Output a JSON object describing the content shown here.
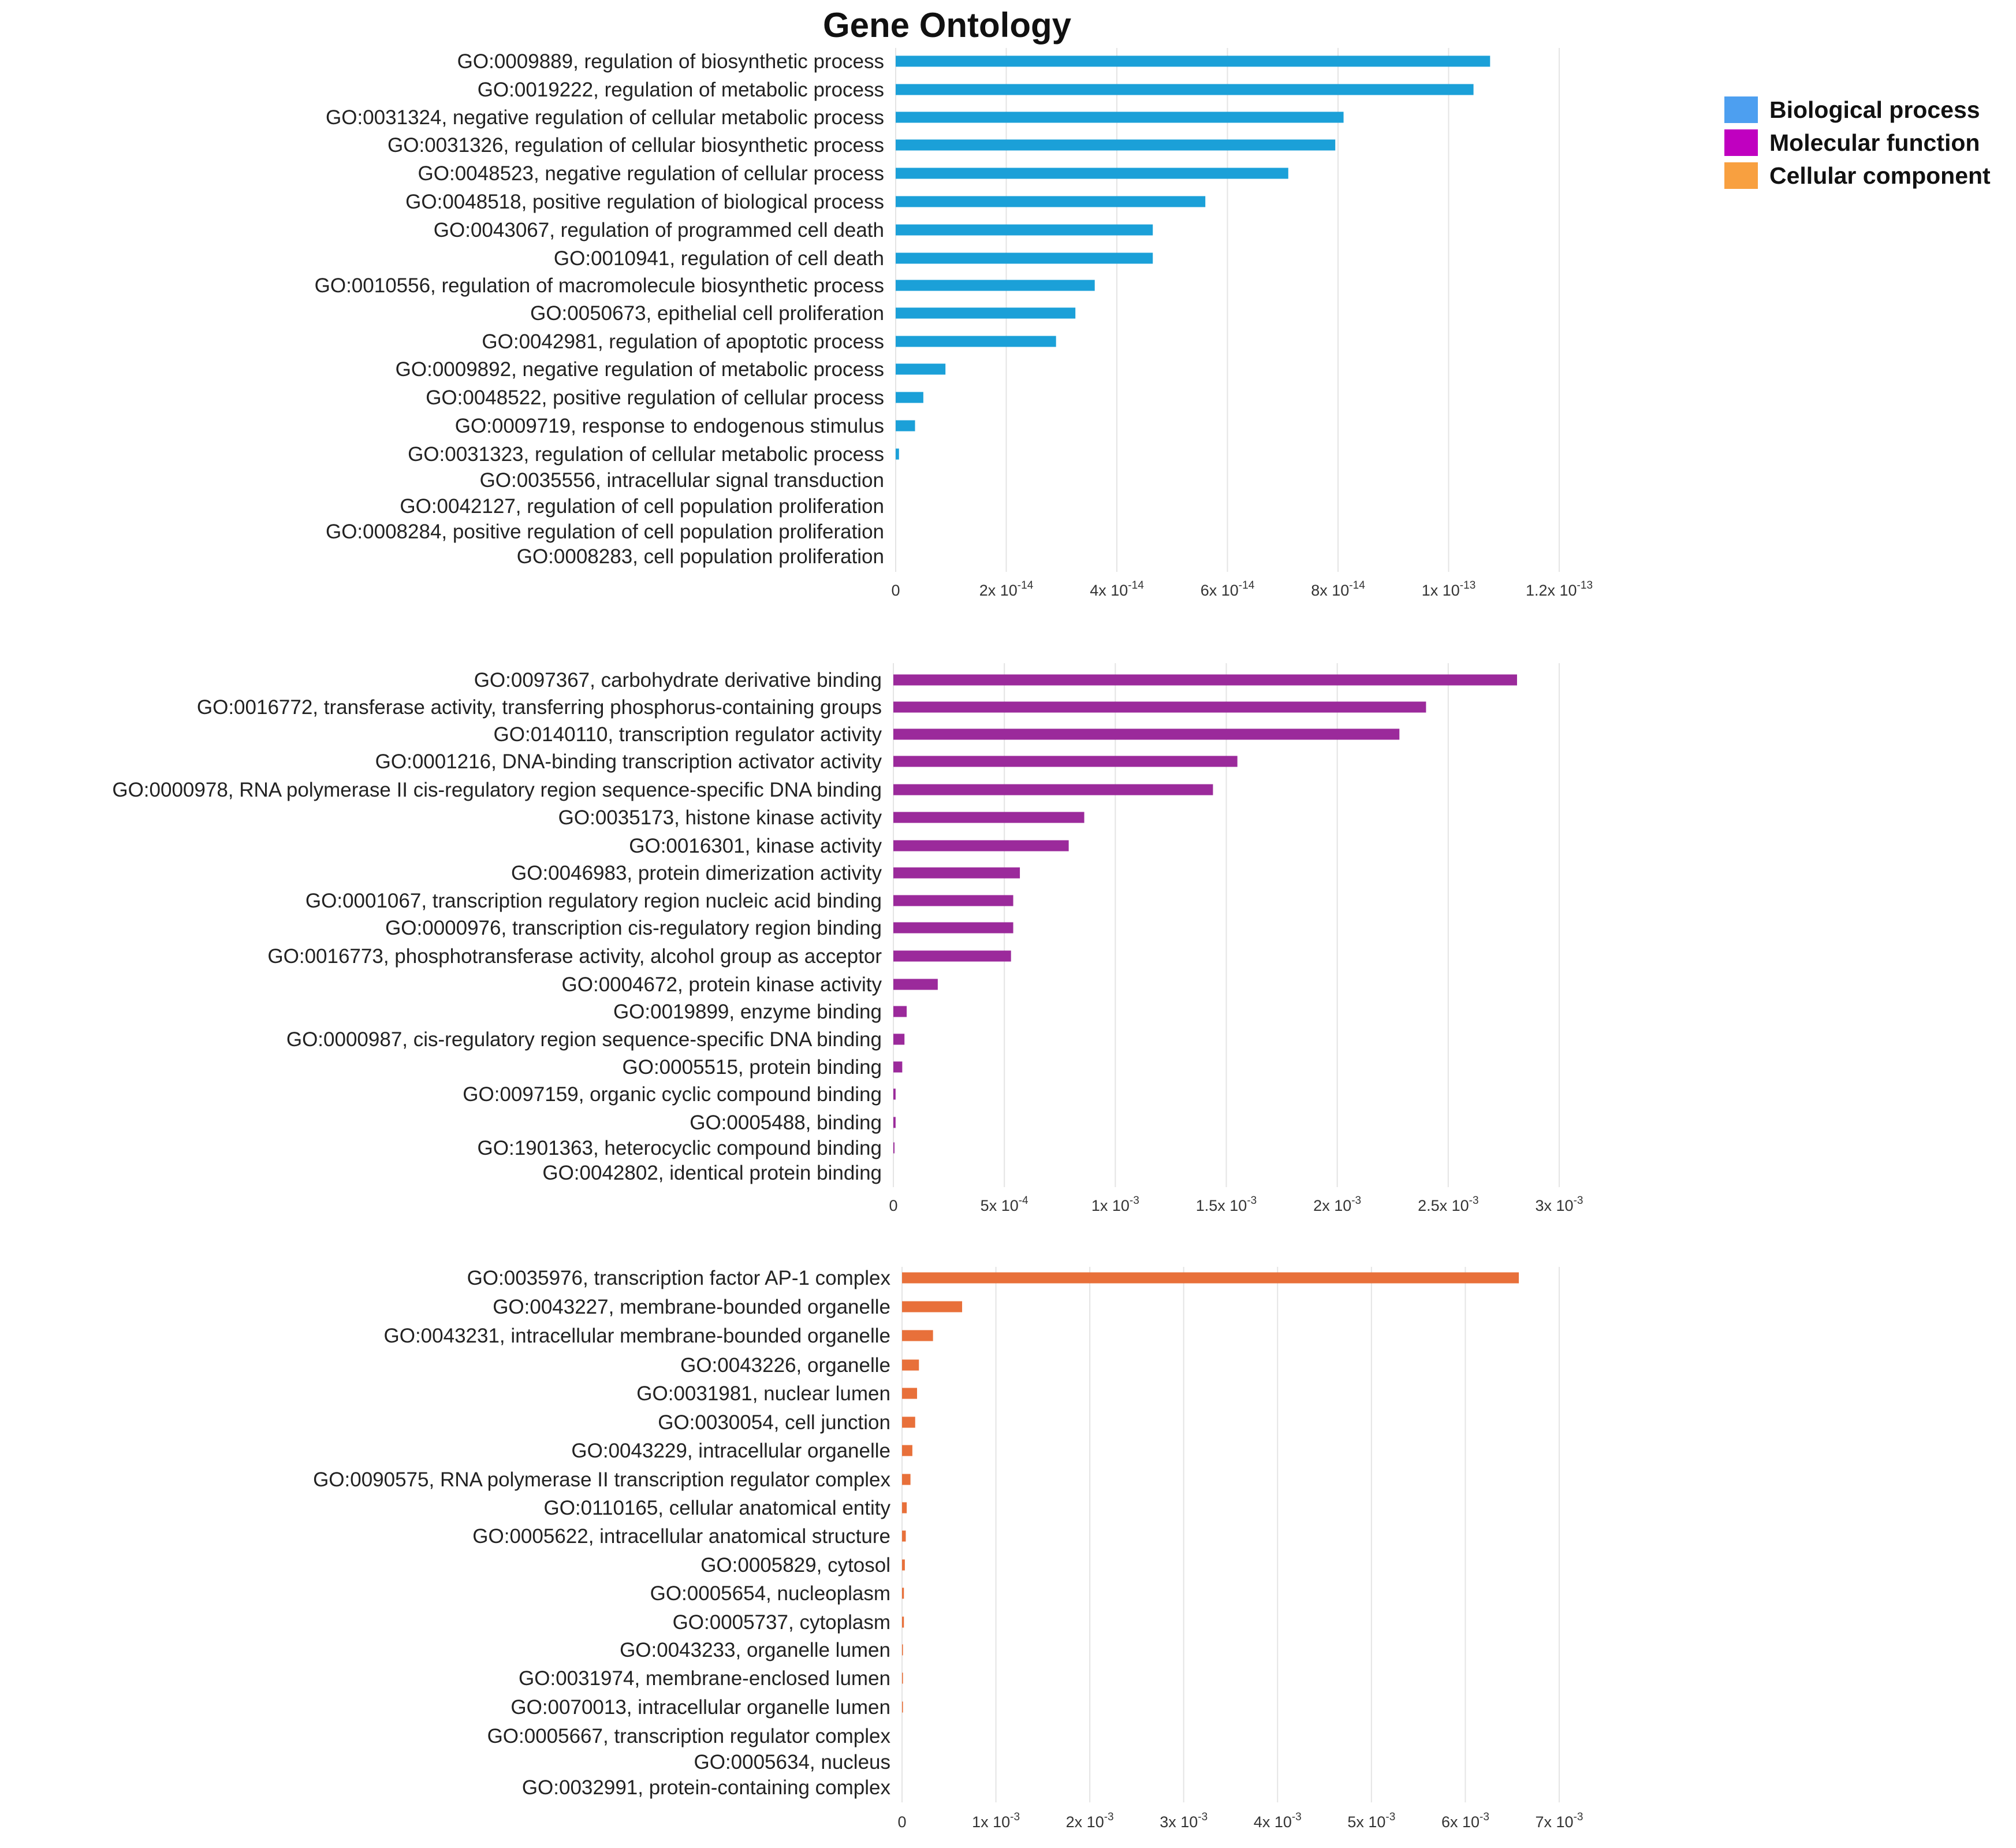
{
  "chart_data": {
    "title": "Gene Ontology",
    "legend": {
      "placement": "top-right",
      "entries": [
        {
          "label": "Biological process",
          "color": "#4d9ff0"
        },
        {
          "label": "Molecular function",
          "color": "#c000c0"
        },
        {
          "label": "Cellular component",
          "color": "#f8a040"
        }
      ]
    },
    "panels": [
      {
        "name": "biological-process",
        "type": "bar",
        "orientation": "horizontal",
        "bar_color": "#1ba0d8",
        "xlim": [
          0,
          1.2e-13
        ],
        "ticks": [
          {
            "value": 0,
            "mantissa": "0",
            "exp": ""
          },
          {
            "value": 2e-14,
            "mantissa": "2x 10",
            "exp": "-14"
          },
          {
            "value": 4e-14,
            "mantissa": "4x 10",
            "exp": "-14"
          },
          {
            "value": 6e-14,
            "mantissa": "6x 10",
            "exp": "-14"
          },
          {
            "value": 8e-14,
            "mantissa": "8x 10",
            "exp": "-14"
          },
          {
            "value": 1e-13,
            "mantissa": "1x 10",
            "exp": "-13"
          },
          {
            "value": 1.2e-13,
            "mantissa": "1.2x 10",
            "exp": "-13"
          }
        ],
        "categories": [
          "GO:0009889, regulation of biosynthetic process",
          "GO:0019222, regulation of metabolic process",
          "GO:0031324, negative regulation of cellular metabolic process",
          "GO:0031326, regulation of cellular biosynthetic process",
          "GO:0048523, negative regulation of cellular process",
          "GO:0048518, positive regulation of biological process",
          "GO:0043067, regulation of programmed cell death",
          "GO:0010941, regulation of cell death",
          "GO:0010556, regulation of macromolecule biosynthetic process",
          "GO:0050673, epithelial cell proliferation",
          "GO:0042981, regulation of apoptotic process",
          "GO:0009892, negative regulation of metabolic process",
          "GO:0048522, positive regulation of cellular process",
          "GO:0009719, response to endogenous stimulus",
          "GO:0031323, regulation of cellular metabolic process",
          "GO:0035556, intracellular signal transduction",
          "GO:0042127, regulation of cell population proliferation",
          "GO:0008284, positive regulation of cell population proliferation",
          "GO:0008283, cell population proliferation"
        ],
        "values": [
          1.075e-13,
          1.045e-13,
          8.1e-14,
          7.95e-14,
          7.1e-14,
          5.6e-14,
          4.65e-14,
          4.65e-14,
          3.6e-14,
          3.25e-14,
          2.9e-14,
          9e-15,
          5e-15,
          3.5e-15,
          6e-16,
          0,
          0,
          0,
          0
        ]
      },
      {
        "name": "molecular-function",
        "type": "bar",
        "orientation": "horizontal",
        "bar_color": "#9b2a9b",
        "xlim": [
          0,
          0.003
        ],
        "ticks": [
          {
            "value": 0,
            "mantissa": "0",
            "exp": ""
          },
          {
            "value": 0.0005,
            "mantissa": "5x 10",
            "exp": "-4"
          },
          {
            "value": 0.001,
            "mantissa": "1x 10",
            "exp": "-3"
          },
          {
            "value": 0.0015,
            "mantissa": "1.5x 10",
            "exp": "-3"
          },
          {
            "value": 0.002,
            "mantissa": "2x 10",
            "exp": "-3"
          },
          {
            "value": 0.0025,
            "mantissa": "2.5x 10",
            "exp": "-3"
          },
          {
            "value": 0.003,
            "mantissa": "3x 10",
            "exp": "-3"
          }
        ],
        "categories": [
          "GO:0097367, carbohydrate derivative binding",
          "GO:0016772, transferase activity, transferring phosphorus-containing groups",
          "GO:0140110, transcription regulator activity",
          "GO:0001216, DNA-binding transcription activator activity",
          "GO:0000978, RNA polymerase II cis-regulatory region sequence-specific DNA binding",
          "GO:0035173, histone kinase activity",
          "GO:0016301, kinase activity",
          "GO:0046983, protein dimerization activity",
          "GO:0001067, transcription regulatory region nucleic acid binding",
          "GO:0000976, transcription cis-regulatory region binding",
          "GO:0016773, phosphotransferase activity, alcohol group as acceptor",
          "GO:0004672, protein kinase activity",
          "GO:0019899, enzyme binding",
          "GO:0000987, cis-regulatory region sequence-specific DNA binding",
          "GO:0005515, protein binding",
          "GO:0097159, organic cyclic compound binding",
          "GO:0005488, binding",
          "GO:1901363, heterocyclic compound binding",
          "GO:0042802, identical protein binding"
        ],
        "values": [
          0.00281,
          0.0024,
          0.00228,
          0.00155,
          0.00144,
          0.00086,
          0.00079,
          0.00057,
          0.00054,
          0.00054,
          0.00053,
          0.0002,
          6e-05,
          5e-05,
          4e-05,
          1e-05,
          1e-05,
          5e-06,
          0
        ]
      },
      {
        "name": "cellular-component",
        "type": "bar",
        "orientation": "horizontal",
        "bar_color": "#e8703a",
        "xlim": [
          0,
          0.007
        ],
        "ticks": [
          {
            "value": 0,
            "mantissa": "0",
            "exp": ""
          },
          {
            "value": 0.001,
            "mantissa": "1x 10",
            "exp": "-3"
          },
          {
            "value": 0.002,
            "mantissa": "2x 10",
            "exp": "-3"
          },
          {
            "value": 0.003,
            "mantissa": "3x 10",
            "exp": "-3"
          },
          {
            "value": 0.004,
            "mantissa": "4x 10",
            "exp": "-3"
          },
          {
            "value": 0.005,
            "mantissa": "5x 10",
            "exp": "-3"
          },
          {
            "value": 0.006,
            "mantissa": "6x 10",
            "exp": "-3"
          },
          {
            "value": 0.007,
            "mantissa": "7x 10",
            "exp": "-3"
          }
        ],
        "categories": [
          "GO:0035976, transcription factor AP-1 complex",
          "GO:0043227, membrane-bounded organelle",
          "GO:0043231, intracellular membrane-bounded organelle",
          "GO:0043226, organelle",
          "GO:0031981, nuclear lumen",
          "GO:0030054, cell junction",
          "GO:0043229, intracellular organelle",
          "GO:0090575, RNA polymerase II transcription regulator complex",
          "GO:0110165, cellular anatomical entity",
          "GO:0005622, intracellular anatomical structure",
          "GO:0005829, cytosol",
          "GO:0005654, nucleoplasm",
          "GO:0005737, cytoplasm",
          "GO:0043233, organelle lumen",
          "GO:0031974, membrane-enclosed lumen",
          "GO:0070013, intracellular organelle lumen",
          "GO:0005667, transcription regulator complex",
          "GO:0005634, nucleus",
          "GO:0032991, protein-containing complex"
        ],
        "values": [
          0.00657,
          0.00064,
          0.00033,
          0.00018,
          0.00016,
          0.00014,
          0.00011,
          9e-05,
          5e-05,
          4e-05,
          3e-05,
          2e-05,
          2e-05,
          1e-05,
          1e-05,
          1e-05,
          0,
          0,
          0
        ]
      }
    ]
  }
}
